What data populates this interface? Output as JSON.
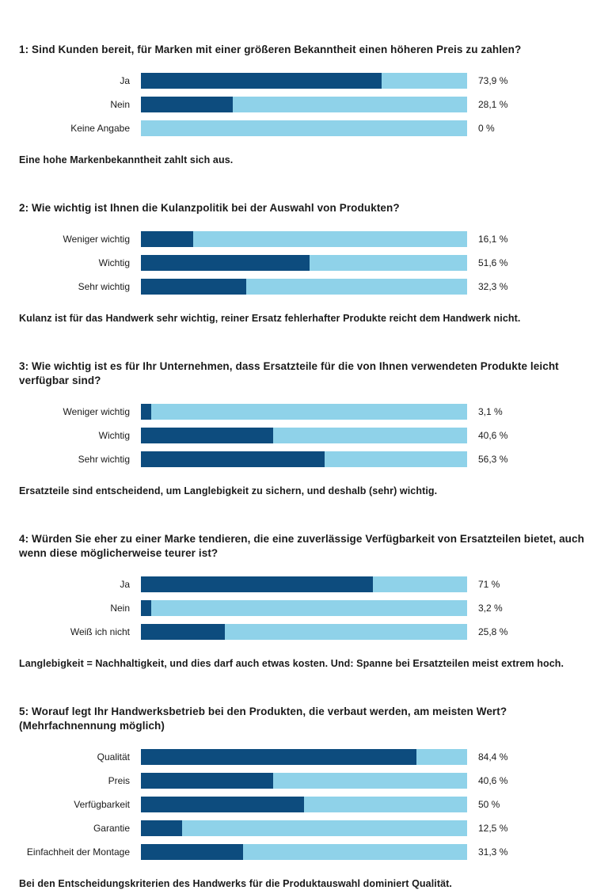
{
  "colors": {
    "bar_fill": "#0d4c7e",
    "bar_track": "#8fd2e9",
    "text": "#1a1a1a"
  },
  "chart_data": [
    {
      "type": "bar",
      "orientation": "horizontal",
      "title": "1: Sind Kunden bereit, für Marken mit einer größeren Bekanntheit einen höheren Preis zu zahlen?",
      "categories": [
        "Ja",
        "Nein",
        "Keine Angabe"
      ],
      "values": [
        73.9,
        28.1,
        0
      ],
      "value_labels": [
        "73,9 %",
        "28,1 %",
        "0 %"
      ],
      "xlim": [
        0,
        100
      ],
      "grid": false,
      "legend": false,
      "note": "Eine hohe Markenbekanntheit zahlt sich aus."
    },
    {
      "type": "bar",
      "orientation": "horizontal",
      "title": "2: Wie wichtig ist Ihnen die Kulanzpolitik bei der Auswahl von Produkten?",
      "categories": [
        "Weniger wichtig",
        "Wichtig",
        "Sehr wichtig"
      ],
      "values": [
        16.1,
        51.6,
        32.3
      ],
      "value_labels": [
        "16,1 %",
        "51,6 %",
        "32,3 %"
      ],
      "xlim": [
        0,
        100
      ],
      "grid": false,
      "legend": false,
      "note": "Kulanz ist für das Handwerk sehr wichtig, reiner Ersatz fehlerhafter Produkte reicht dem Handwerk nicht."
    },
    {
      "type": "bar",
      "orientation": "horizontal",
      "title": "3: Wie wichtig ist es für Ihr Unternehmen, dass Ersatzteile für die von Ihnen verwendeten Produkte leicht verfügbar sind?",
      "categories": [
        "Weniger wichtig",
        "Wichtig",
        "Sehr wichtig"
      ],
      "values": [
        3.1,
        40.6,
        56.3
      ],
      "value_labels": [
        "3,1 %",
        "40,6 %",
        "56,3 %"
      ],
      "xlim": [
        0,
        100
      ],
      "grid": false,
      "legend": false,
      "note": "Ersatzteile sind entscheidend, um Langlebigkeit zu sichern, und deshalb (sehr) wichtig."
    },
    {
      "type": "bar",
      "orientation": "horizontal",
      "title": "4: Würden Sie eher zu einer Marke tendieren, die eine zuverlässige Verfügbarkeit von Ersatzteilen bietet, auch wenn diese möglicherweise teurer ist?",
      "categories": [
        "Ja",
        "Nein",
        "Weiß ich nicht"
      ],
      "values": [
        71,
        3.2,
        25.8
      ],
      "value_labels": [
        "71 %",
        "3,2 %",
        "25,8 %"
      ],
      "xlim": [
        0,
        100
      ],
      "grid": false,
      "legend": false,
      "note": "Langlebigkeit = Nachhaltigkeit, und dies darf auch etwas kosten. Und: Spanne bei Ersatzteilen meist extrem hoch."
    },
    {
      "type": "bar",
      "orientation": "horizontal",
      "title": "5: Worauf legt Ihr Handwerksbetrieb bei den Produkten, die verbaut werden, am meisten Wert? (Mehrfachnennung möglich)",
      "categories": [
        "Qualität",
        "Preis",
        "Verfügbarkeit",
        "Garantie",
        "Einfachheit der Montage"
      ],
      "values": [
        84.4,
        40.6,
        50,
        12.5,
        31.3
      ],
      "value_labels": [
        "84,4 %",
        "40,6 %",
        "50 %",
        "12,5 %",
        "31,3 %"
      ],
      "xlim": [
        0,
        100
      ],
      "grid": false,
      "legend": false,
      "note": "Bei den Entscheidungskriterien des Handwerks für die Produktauswahl dominiert Qualität."
    }
  ]
}
